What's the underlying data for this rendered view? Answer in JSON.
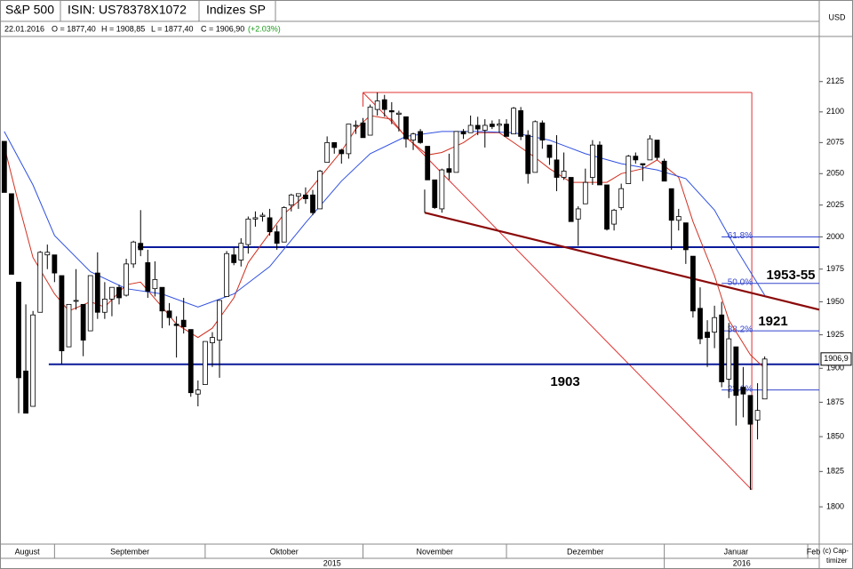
{
  "chart_data": {
    "type": "candlestick",
    "header": [
      "S&P 500",
      "ISIN: US78378X1072",
      "Indizes SP"
    ],
    "info": [
      "22.01.2016",
      "O = 1877,40",
      "H = 1908,85",
      "L = 1877,40",
      "C = 1906,90",
      "(+2.03%)"
    ],
    "currency": "USD",
    "copyright": [
      "(c) Cap-",
      "timizer"
    ],
    "log_y": true,
    "ylim": [
      1774,
      2162
    ],
    "yticks": [
      1800,
      1825,
      1850,
      1875,
      1900,
      1925,
      1950,
      1975,
      2000,
      2025,
      2050,
      2075,
      2100,
      2125
    ],
    "xlim": [
      -0.6,
      113.6
    ],
    "xticks": [
      7,
      28,
      50,
      70,
      92,
      112
    ],
    "months": [
      "August",
      "September",
      "Oktober",
      "November",
      "Dezember",
      "Januar",
      "Feb"
    ],
    "years": [
      {
        "label": "2015",
        "from": -0.6,
        "to": 92
      },
      {
        "label": "2016",
        "from": 92,
        "to": 113.6
      }
    ],
    "up_color": "#ffffff",
    "down_color": "#000000",
    "open": [
      2076,
      2034,
      1965,
      1898,
      1872,
      1942,
      1986,
      1986,
      1970,
      1916,
      1951,
      1948,
      1928,
      1972,
      1942,
      1952,
      1961,
      1955,
      1979,
      1995,
      1980,
      1960,
      1961,
      1943,
      1933,
      1936,
      1929,
      1881,
      1888,
      1919,
      1921,
      1954,
      1986,
      1982,
      1994,
      2014,
      2016,
      2015,
      2004,
      1996,
      2025,
      2032,
      2033,
      2033,
      2022,
      2059,
      2075,
      2069,
      2066,
      2089,
      2091,
      2081,
      2102,
      2110,
      2101,
      2098,
      2096,
      2077,
      2084,
      2072,
      2045,
      2022,
      2054,
      2051,
      2084,
      2083,
      2089,
      2085,
      2090,
      2089,
      2090,
      2082,
      2101,
      2081,
      2051,
      2091,
      2073,
      2061,
      2047,
      2047,
      2014,
      2026,
      2047,
      2073,
      2041,
      2010,
      2023,
      2042,
      2064,
      2058,
      2061,
      2077,
      2060,
      2038,
      2013,
      2011,
      1985,
      1945,
      1927,
      1927,
      1940,
      1892,
      1916,
      1886,
      1880,
      1862,
      1877.4
    ],
    "high": [
      2076,
      2034,
      1965,
      1948,
      1943,
      1989,
      1994,
      1986,
      1970,
      1948,
      1975,
      1948,
      1970,
      1988,
      1965,
      1961,
      1963,
      1983,
      1997,
      2021,
      1990,
      1981,
      1961,
      1949,
      1939,
      1953,
      1929,
      1891,
      1920,
      1927,
      1951,
      1989,
      1992,
      1999,
      2016,
      2020,
      2019,
      2022,
      2009,
      2024,
      2034,
      2034,
      2039,
      2037,
      2053,
      2080,
      2075,
      2070,
      2090,
      2093,
      2095,
      2106,
      2116,
      2114,
      2108,
      2101,
      2096,
      2083,
      2086,
      2072,
      2045,
      2054,
      2066,
      2084,
      2086,
      2097,
      2096,
      2094,
      2093,
      2094,
      2094,
      2104,
      2104,
      2085,
      2093,
      2093,
      2073,
      2081,
      2067,
      2047,
      2024,
      2054,
      2077,
      2076,
      2041,
      2022,
      2042,
      2065,
      2067,
      2058,
      2081,
      2077,
      2062,
      2038,
      2022,
      2011,
      1985,
      1961,
      1936,
      1947,
      1950,
      1934,
      1916,
      1901,
      1880,
      1889,
      1908.85
    ],
    "low": [
      2035,
      1971,
      1867,
      1867,
      1872,
      1942,
      1975,
      1965,
      1903,
      1916,
      1944,
      1909,
      1928,
      1937,
      1937,
      1939,
      1948,
      1954,
      1976,
      1985,
      1953,
      1954,
      1930,
      1932,
      1908,
      1926,
      1879,
      1872,
      1888,
      1901,
      1893,
      1954,
      1978,
      1977,
      1987,
      2008,
      2012,
      2001,
      1990,
      1996,
      2020,
      2022,
      2026,
      2017,
      2022,
      2059,
      2066,
      2058,
      2062,
      2082,
      2079,
      2081,
      2097,
      2096,
      2090,
      2084,
      2071,
      2069,
      2074,
      2045,
      2022,
      2019,
      2045,
      2051,
      2078,
      2083,
      2081,
      2071,
      2086,
      2083,
      2080,
      2082,
      2077,
      2042,
      2051,
      2070,
      2057,
      2036,
      2045,
      2012,
      1993,
      2026,
      2041,
      2042,
      2005,
      2005,
      2021,
      2042,
      2058,
      2044,
      2061,
      2061,
      2044,
      1990,
      2005,
      1979,
      1938,
      1918,
      1901,
      1915,
      1886,
      1878,
      1858,
      1864,
      1812,
      1848,
      1877.4
    ],
    "close": [
      2035,
      1971,
      1893,
      1867,
      1940,
      1988,
      1988,
      1972,
      1913,
      1948,
      1951,
      1921,
      1970,
      1942,
      1952,
      1961,
      1953,
      1979,
      1996,
      1990,
      1958,
      1967,
      1943,
      1938,
      1932,
      1931,
      1882,
      1884,
      1920,
      1923,
      1951,
      1987,
      1980,
      1995,
      2014,
      2015,
      2017,
      2004,
      1995,
      2023,
      2033,
      2034,
      2030,
      2019,
      2052,
      2075,
      2071,
      2066,
      2090,
      2089,
      2079,
      2104,
      2109,
      2102,
      2100,
      2099,
      2078,
      2082,
      2075,
      2045,
      2023,
      2053,
      2051,
      2084,
      2082,
      2089,
      2086,
      2089,
      2088,
      2090,
      2080,
      2103,
      2080,
      2050,
      2092,
      2077,
      2063,
      2047,
      2052,
      2012,
      2022,
      2043,
      2073,
      2041,
      2006,
      2021,
      2038,
      2064,
      2061,
      2057,
      2078,
      2063,
      2044,
      2013,
      2016,
      1990,
      1943,
      1922,
      1923,
      1938,
      1890,
      1922,
      1880,
      1881,
      1859,
      1869,
      1906.9
    ],
    "lines": [
      {
        "color": "#d03020",
        "x": [
          0,
          2,
          4,
          7,
          9,
          12,
          14,
          17,
          19,
          22,
          24,
          27,
          29,
          32,
          34,
          37,
          39,
          42,
          44,
          47,
          49,
          51,
          54,
          56,
          59,
          61,
          64,
          66,
          69,
          71,
          74,
          76,
          79,
          81,
          84,
          86,
          89,
          91,
          94,
          96,
          99,
          101,
          104,
          106
        ],
        "values": [
          2072,
          2026,
          1984,
          1956,
          1943,
          1950,
          1946,
          1963,
          1965,
          1946,
          1933,
          1923,
          1930,
          1953,
          1980,
          2003,
          2018,
          2033,
          2047,
          2068,
          2086,
          2097,
          2094,
          2079,
          2065,
          2067,
          2075,
          2083,
          2083,
          2075,
          2063,
          2054,
          2043,
          2043,
          2043,
          2050,
          2054,
          2061,
          2047,
          2012,
          1970,
          1936,
          1910,
          1900
        ]
      },
      {
        "color": "#3050e0",
        "x": [
          0,
          4,
          7,
          12,
          17,
          22,
          27,
          32,
          37,
          42,
          47,
          51,
          56,
          61,
          66,
          71,
          76,
          81,
          86,
          91,
          95,
          99,
          102,
          106
        ],
        "values": [
          2084,
          2041,
          2001,
          1973,
          1960,
          1956,
          1946,
          1956,
          1977,
          2011,
          2044,
          2066,
          2080,
          2084,
          2084,
          2083,
          2077,
          2066,
          2058,
          2053,
          2046,
          2021,
          1991,
          1955
        ]
      }
    ],
    "levels": [
      {
        "value": 1992,
        "from": 18.6,
        "to": 113.6,
        "color": "#0a1a9a"
      },
      {
        "value": 1903,
        "from": 6.2,
        "to": 113.6,
        "color": "#0a1a9a"
      }
    ],
    "trendline": {
      "x": [
        58.6,
        113.6
      ],
      "values": [
        2019,
        1944
      ],
      "color": "#8b0a0a"
    },
    "fib": {
      "x": [
        50,
        104.2
      ],
      "high": 2116,
      "low": 1812,
      "color": "#e03030",
      "level_color": "#3344cc",
      "levels": [
        {
          "value": 2000,
          "label": "61.8%"
        },
        {
          "value": 1964,
          "label": "50.0%"
        },
        {
          "value": 1928,
          "label": "38.2%"
        },
        {
          "value": 1884,
          "label": "23.6%"
        }
      ]
    },
    "annotations": [
      "1903",
      "1921",
      "1953-55"
    ],
    "last": {
      "value": 1906.9,
      "label": "1906,9"
    }
  }
}
